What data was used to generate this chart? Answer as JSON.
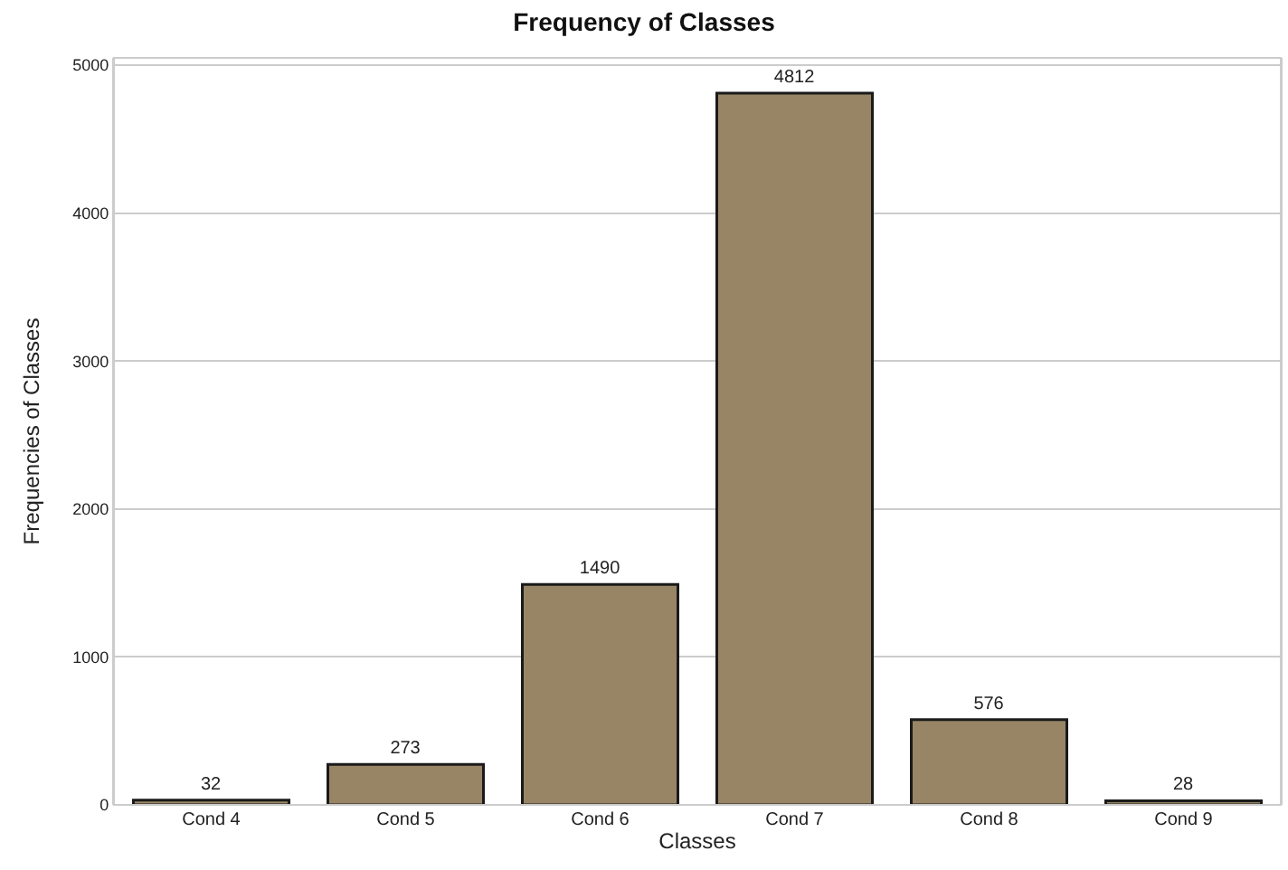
{
  "chart_data": {
    "type": "bar",
    "title": "Frequency of Classes",
    "xlabel": "Classes",
    "ylabel": "Frequencies of Classes",
    "categories": [
      "Cond 4",
      "Cond 5",
      "Cond 6",
      "Cond 7",
      "Cond 8",
      "Cond 9"
    ],
    "values": [
      32,
      273,
      1490,
      4812,
      576,
      28
    ],
    "color": "#978565",
    "ylim": [
      0,
      5050
    ],
    "yticks": [
      0,
      1000,
      2000,
      3000,
      4000,
      5000
    ],
    "grid": "y",
    "data_labels": true
  }
}
